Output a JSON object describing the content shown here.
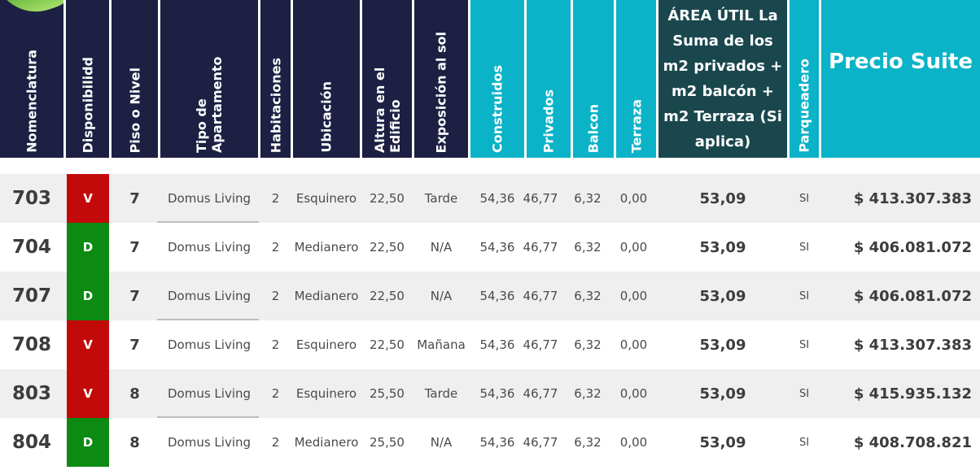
{
  "colors": {
    "header_navy": "#1d2043",
    "header_teal": "#0ab3c7",
    "header_dark_teal": "#19474d",
    "available_green": "#0c8a12",
    "sold_red": "#c30a0a",
    "row_shade": "#efefef"
  },
  "headers": {
    "nomenclatura": "Nomenclatura",
    "disponibilidad": "Disponibilidd",
    "piso": "Piso o Nivel",
    "tipo": "Tipo de Apartamento",
    "habitaciones": "Habitaciones",
    "ubicacion": "Ubicación",
    "altura": "Altura en el Edificio",
    "exposicion": "Exposición al sol",
    "construidos": "Construidos",
    "privados": "Privados",
    "balcon": "Balcon",
    "terraza": "Terraza",
    "area_util": "ÁREA ÚTIL La Suma de los m2 privados + m2 balcón + m2 Terraza (Si aplica)",
    "parqueadero": "Parqueadero",
    "precio": "Precio Suite"
  },
  "rows": [
    {
      "nom": "703",
      "disp": "V",
      "piso": "7",
      "tipo": "Domus Living",
      "hab": "2",
      "ubic": "Esquinero",
      "altura": "22,50",
      "expo": "Tarde",
      "constr": "54,36",
      "priv": "46,77",
      "balcon": "6,32",
      "terraza": "0,00",
      "area": "53,09",
      "parq": "SI",
      "precio": "$ 413.307.383"
    },
    {
      "nom": "704",
      "disp": "D",
      "piso": "7",
      "tipo": "Domus Living",
      "hab": "2",
      "ubic": "Medianero",
      "altura": "22,50",
      "expo": "N/A",
      "constr": "54,36",
      "priv": "46,77",
      "balcon": "6,32",
      "terraza": "0,00",
      "area": "53,09",
      "parq": "SI",
      "precio": "$ 406.081.072"
    },
    {
      "nom": "707",
      "disp": "D",
      "piso": "7",
      "tipo": "Domus Living",
      "hab": "2",
      "ubic": "Medianero",
      "altura": "22,50",
      "expo": "N/A",
      "constr": "54,36",
      "priv": "46,77",
      "balcon": "6,32",
      "terraza": "0,00",
      "area": "53,09",
      "parq": "SI",
      "precio": "$ 406.081.072"
    },
    {
      "nom": "708",
      "disp": "V",
      "piso": "7",
      "tipo": "Domus Living",
      "hab": "2",
      "ubic": "Esquinero",
      "altura": "22,50",
      "expo": "Mañana",
      "constr": "54,36",
      "priv": "46,77",
      "balcon": "6,32",
      "terraza": "0,00",
      "area": "53,09",
      "parq": "SI",
      "precio": "$ 413.307.383"
    },
    {
      "nom": "803",
      "disp": "V",
      "piso": "8",
      "tipo": "Domus Living",
      "hab": "2",
      "ubic": "Esquinero",
      "altura": "25,50",
      "expo": "Tarde",
      "constr": "54,36",
      "priv": "46,77",
      "balcon": "6,32",
      "terraza": "0,00",
      "area": "53,09",
      "parq": "SI",
      "precio": "$ 415.935.132"
    },
    {
      "nom": "804",
      "disp": "D",
      "piso": "8",
      "tipo": "Domus Living",
      "hab": "2",
      "ubic": "Medianero",
      "altura": "25,50",
      "expo": "N/A",
      "constr": "54,36",
      "priv": "46,77",
      "balcon": "6,32",
      "terraza": "0,00",
      "area": "53,09",
      "parq": "SI",
      "precio": "$ 408.708.821"
    }
  ]
}
